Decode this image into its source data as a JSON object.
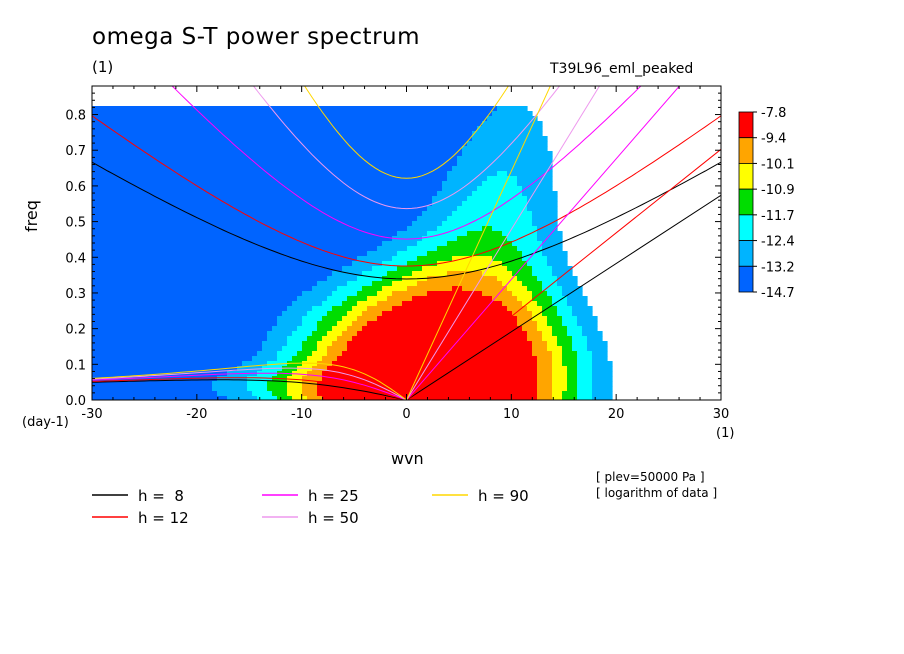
{
  "chart_data": {
    "type": "heatmap",
    "title": "omega S-T power spectrum",
    "subtitle_left": "(1)",
    "subtitle_right": "T39L96_eml_peaked",
    "xlabel": "wvn",
    "ylabel": "freq",
    "x_unit_left": "(day-1)",
    "x_unit_right": "(1)",
    "xlim": [
      -30,
      30
    ],
    "ylim": [
      0,
      0.88
    ],
    "x_ticks": [
      -30,
      -20,
      -10,
      0,
      10,
      20,
      30
    ],
    "y_ticks": [
      0.0,
      0.1,
      0.2,
      0.3,
      0.4,
      0.5,
      0.6,
      0.7,
      0.8
    ],
    "colorbar": {
      "labels": [
        "-7.8",
        "-9.4",
        "-10.1",
        "-10.9",
        "-11.7",
        "-12.4",
        "-13.2",
        "-14.7"
      ],
      "colors": [
        "#ff0000",
        "#ffa500",
        "#ffff00",
        "#00dd00",
        "#00ffff",
        "#00b4ff",
        "#0064ff"
      ]
    },
    "dispersion_curves": [
      {
        "name": "h =  8",
        "color": "#000000",
        "equivalent_depth": 8
      },
      {
        "name": "h = 12",
        "color": "#ff0000",
        "equivalent_depth": 12
      },
      {
        "name": "h = 25",
        "color": "#ff00ff",
        "equivalent_depth": 25
      },
      {
        "name": "h = 50",
        "color": "#ee99ee",
        "equivalent_depth": 50
      },
      {
        "name": "h = 90",
        "color": "#ffd700",
        "equivalent_depth": 90
      }
    ],
    "notes": [
      "[ plev=50000 Pa ]",
      "[ logarithm of data ]"
    ]
  }
}
